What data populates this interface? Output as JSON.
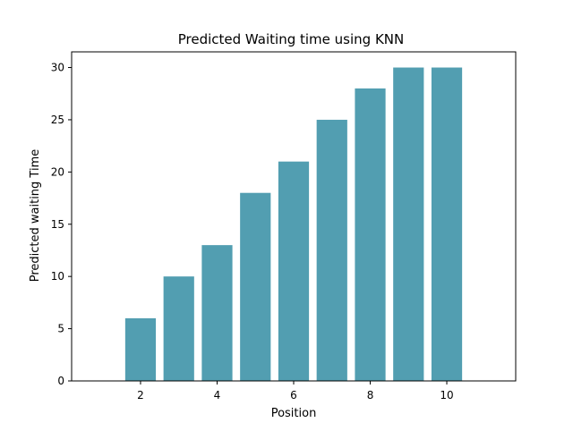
{
  "chart_data": {
    "type": "bar",
    "title": "Predicted Waiting time using KNN",
    "xlabel": "Position",
    "ylabel": "Predicted waiting Time",
    "x": [
      2,
      3,
      4,
      5,
      6,
      7,
      8,
      9,
      10
    ],
    "values": [
      6,
      10,
      13,
      18,
      21,
      25,
      28,
      30,
      30
    ],
    "xlim": [
      0.2,
      11.8
    ],
    "ylim": [
      0,
      31.5
    ],
    "xticks": [
      2,
      4,
      6,
      8,
      10
    ],
    "yticks": [
      0,
      5,
      10,
      15,
      20,
      25,
      30
    ],
    "bar_width": 0.8,
    "bar_color": "#529eb1",
    "grid": false,
    "legend": "none"
  }
}
